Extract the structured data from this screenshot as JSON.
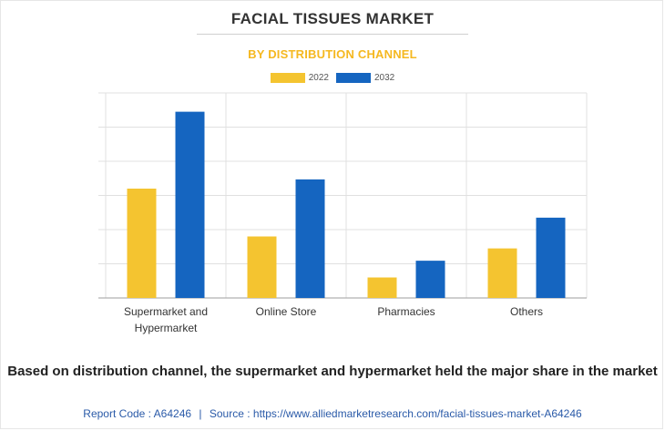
{
  "header": {
    "title": "FACIAL TISSUES MARKET",
    "subtitle": "BY DISTRIBUTION CHANNEL"
  },
  "colors": {
    "subtitle": "#f5b820",
    "series_2022": "#f4c430",
    "series_2032": "#1565c0",
    "grid": "#e0e0e0",
    "axis": "#9e9e9e"
  },
  "chart_data": {
    "type": "bar",
    "title": "FACIAL TISSUES MARKET",
    "subtitle": "BY DISTRIBUTION CHANNEL",
    "categories": [
      "Supermarket and Hypermarket",
      "Online Store",
      "Pharmacies",
      "Others"
    ],
    "category_lines": [
      [
        "Supermarket and",
        "Hypermarket"
      ],
      [
        "Online Store"
      ],
      [
        "Pharmacies"
      ],
      [
        "Others"
      ]
    ],
    "series": [
      {
        "name": "2022",
        "values": [
          3.2,
          1.8,
          0.6,
          1.45
        ]
      },
      {
        "name": "2032",
        "values": [
          5.45,
          3.47,
          1.09,
          2.35
        ]
      }
    ],
    "ylim": [
      0,
      6
    ],
    "y_gridlines": [
      0,
      1,
      2,
      3,
      4,
      5,
      6
    ],
    "grid": true,
    "y_tick_labels_shown": false,
    "legend_position": "top-center"
  },
  "caption": "Based on distribution channel, the supermarket and hypermarket held the major share in the market",
  "footer": {
    "report_code": "Report Code : A64246",
    "separator": "|",
    "source": "Source : https://www.alliedmarketresearch.com/facial-tissues-market-A64246"
  }
}
